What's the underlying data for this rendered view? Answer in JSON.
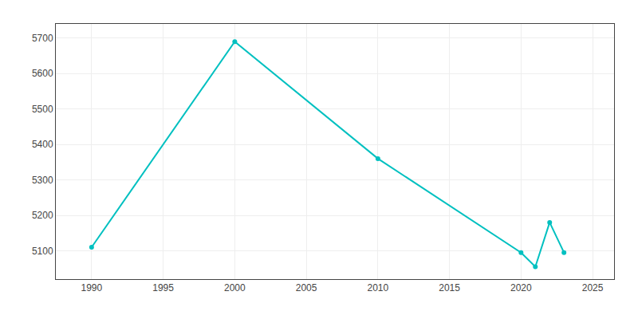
{
  "chart_data": {
    "type": "line",
    "x": [
      1990,
      2000,
      2010,
      2020,
      2021,
      2022,
      2023
    ],
    "values": [
      5110,
      5690,
      5360,
      5095,
      5055,
      5180,
      5095
    ],
    "color": "#00C0C0",
    "marker": "circle",
    "xlim": [
      1987.5,
      2026.5
    ],
    "ylim": [
      5020,
      5740
    ],
    "xticks": [
      1990,
      1995,
      2000,
      2005,
      2010,
      2015,
      2020,
      2025
    ],
    "yticks": [
      5100,
      5200,
      5300,
      5400,
      5500,
      5600,
      5700
    ],
    "grid": true
  }
}
